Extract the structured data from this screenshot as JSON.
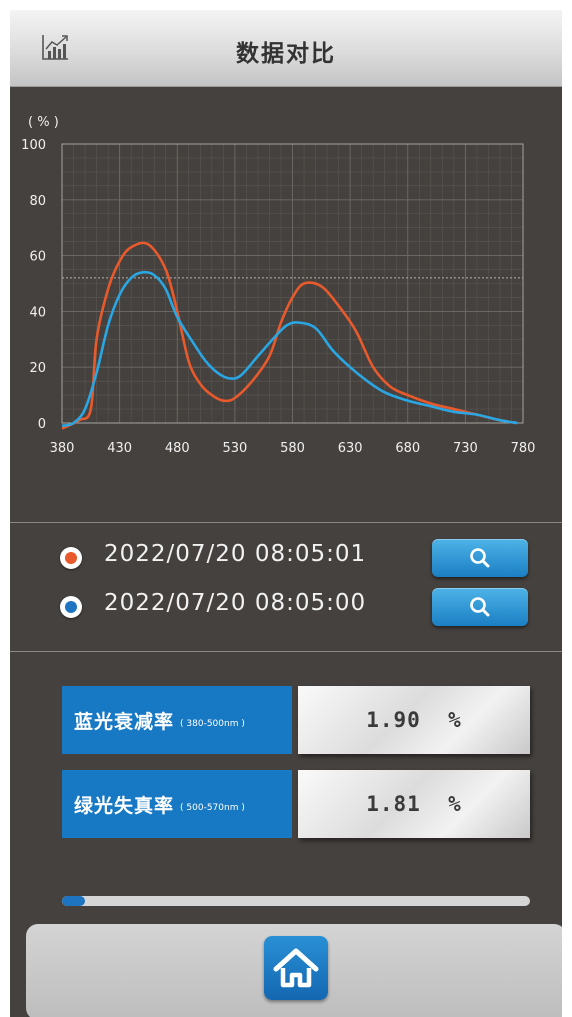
{
  "header": {
    "title": "数据对比",
    "chart_icon": "bar-chart-icon"
  },
  "chart_data": {
    "type": "line",
    "ylabel": "( % )",
    "xlabel": "",
    "xlim": [
      380,
      780
    ],
    "ylim": [
      0,
      100
    ],
    "xticks": [
      380,
      430,
      480,
      530,
      580,
      630,
      680,
      730,
      780
    ],
    "yticks": [
      0,
      20,
      40,
      60,
      80,
      100
    ],
    "grid": true,
    "reference_line": 52,
    "series": [
      {
        "color": "#e85a2c",
        "points": [
          [
            380,
            -2
          ],
          [
            395,
            1
          ],
          [
            405,
            5
          ],
          [
            410,
            30
          ],
          [
            420,
            48
          ],
          [
            430,
            58
          ],
          [
            440,
            63
          ],
          [
            455,
            64
          ],
          [
            470,
            55
          ],
          [
            480,
            40
          ],
          [
            490,
            22
          ],
          [
            500,
            14
          ],
          [
            510,
            10
          ],
          [
            520,
            8
          ],
          [
            530,
            9
          ],
          [
            545,
            15
          ],
          [
            560,
            24
          ],
          [
            570,
            36
          ],
          [
            580,
            45
          ],
          [
            590,
            50
          ],
          [
            605,
            49
          ],
          [
            620,
            42
          ],
          [
            635,
            33
          ],
          [
            650,
            20
          ],
          [
            665,
            13
          ],
          [
            680,
            10
          ],
          [
            700,
            7
          ],
          [
            720,
            5
          ],
          [
            740,
            3
          ],
          [
            760,
            1
          ],
          [
            775,
            0
          ]
        ]
      },
      {
        "color": "#2aa6e3",
        "points": [
          [
            380,
            -1
          ],
          [
            390,
            0
          ],
          [
            400,
            5
          ],
          [
            410,
            18
          ],
          [
            420,
            35
          ],
          [
            430,
            46
          ],
          [
            440,
            52
          ],
          [
            450,
            54
          ],
          [
            460,
            53
          ],
          [
            470,
            48
          ],
          [
            480,
            38
          ],
          [
            495,
            28
          ],
          [
            505,
            22
          ],
          [
            515,
            18
          ],
          [
            525,
            16
          ],
          [
            535,
            17
          ],
          [
            550,
            24
          ],
          [
            565,
            31
          ],
          [
            575,
            35
          ],
          [
            585,
            36
          ],
          [
            600,
            34
          ],
          [
            615,
            26
          ],
          [
            630,
            20
          ],
          [
            645,
            15
          ],
          [
            660,
            11
          ],
          [
            680,
            8
          ],
          [
            700,
            6
          ],
          [
            720,
            4
          ],
          [
            740,
            3
          ],
          [
            760,
            1
          ],
          [
            775,
            0
          ]
        ]
      }
    ]
  },
  "records": [
    {
      "timestamp": "2022/07/20   08:05:01",
      "color": "#e85a2c",
      "search_icon": "search-icon"
    },
    {
      "timestamp": "2022/07/20   08:05:00",
      "color": "#1e74c0",
      "search_icon": "search-icon"
    }
  ],
  "metrics": [
    {
      "label": "蓝光衰减率",
      "range": "( 380-500nm )",
      "value": "1.90  %"
    },
    {
      "label": "绿光失真率",
      "range": "( 500-570nm )",
      "value": "1.81  %"
    }
  ],
  "progress": {
    "fraction": 0.05
  },
  "nav": {
    "home_icon": "home-icon"
  }
}
